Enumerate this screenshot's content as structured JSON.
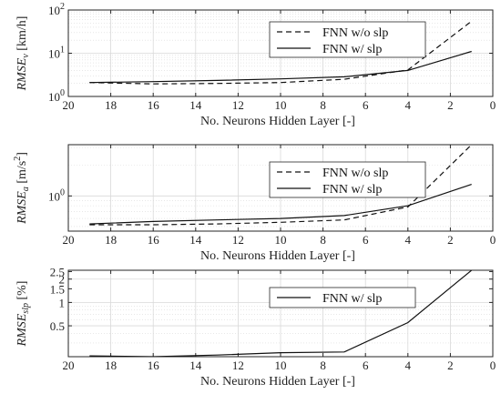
{
  "chart_data": [
    {
      "type": "line",
      "xlabel": "No. Neurons Hidden Layer [-]",
      "ylabel": "RMSE_v [km/h]",
      "ylabel_main": "RMSE",
      "ylabel_sub": "v",
      "ylabel_unit": " [km/h]",
      "yscale": "log",
      "xlim": [
        20,
        0
      ],
      "ylim": [
        1,
        100
      ],
      "x_ticks": [
        20,
        18,
        16,
        14,
        12,
        10,
        8,
        6,
        4,
        2,
        0
      ],
      "y_ticks": [
        {
          "value": 1,
          "base": "10",
          "exp": "0"
        },
        {
          "value": 10,
          "base": "10",
          "exp": "1"
        },
        {
          "value": 100,
          "base": "10",
          "exp": "2"
        }
      ],
      "legend_position": "top-right",
      "x": [
        19,
        16,
        13,
        10,
        7,
        4,
        1
      ],
      "series": [
        {
          "name": "FNN w/o slp",
          "style": "dashed",
          "values": [
            2.1,
            1.95,
            2.0,
            2.1,
            2.5,
            4.1,
            55
          ]
        },
        {
          "name": "FNN w/ slp",
          "style": "solid",
          "values": [
            2.1,
            2.2,
            2.35,
            2.55,
            2.85,
            4.0,
            11
          ]
        }
      ]
    },
    {
      "type": "line",
      "xlabel": "No. Neurons Hidden Layer [-]",
      "ylabel": "RMSE_a [m/s^2]",
      "ylabel_main": "RMSE",
      "ylabel_sub": "a",
      "ylabel_unit": " [m/s",
      "ylabel_sup": "2",
      "ylabel_close": "]",
      "yscale": "log",
      "xlim": [
        20,
        0
      ],
      "ylim": [
        0.45,
        3.2
      ],
      "x_ticks": [
        20,
        18,
        16,
        14,
        12,
        10,
        8,
        6,
        4,
        2,
        0
      ],
      "y_ticks": [
        {
          "value": 1,
          "base": "10",
          "exp": "0"
        }
      ],
      "legend_position": "right",
      "x": [
        19,
        16,
        13,
        10,
        7,
        4,
        1
      ],
      "series": [
        {
          "name": "FNN w/o slp",
          "style": "dashed",
          "values": [
            0.52,
            0.52,
            0.53,
            0.55,
            0.58,
            0.78,
            3.2
          ]
        },
        {
          "name": "FNN w/ slp",
          "style": "solid",
          "values": [
            0.53,
            0.56,
            0.58,
            0.6,
            0.64,
            0.8,
            1.3
          ]
        }
      ]
    },
    {
      "type": "line",
      "xlabel": "No. Neurons Hidden Layer [-]",
      "ylabel": "RMSE_slp [%]",
      "ylabel_main": "RMSE",
      "ylabel_sub": "slp",
      "ylabel_unit": " [%]",
      "yscale": "log",
      "xlim": [
        20,
        0
      ],
      "ylim": [
        0.2,
        2.6
      ],
      "x_ticks": [
        20,
        18,
        16,
        14,
        12,
        10,
        8,
        6,
        4,
        2,
        0
      ],
      "y_ticks": [
        {
          "value": 0.5,
          "label": "0.5"
        },
        {
          "value": 1,
          "label": "1"
        },
        {
          "value": 1.5,
          "label": "1.5"
        },
        {
          "value": 2,
          "label": "2"
        },
        {
          "value": 2.5,
          "label": "2.5"
        }
      ],
      "legend_position": "top-right",
      "x": [
        19,
        16,
        13,
        10,
        7,
        4,
        1
      ],
      "series": [
        {
          "name": "FNN w/ slp",
          "style": "solid",
          "values": [
            0.205,
            0.2,
            0.21,
            0.225,
            0.23,
            0.55,
            2.6
          ]
        }
      ]
    }
  ]
}
